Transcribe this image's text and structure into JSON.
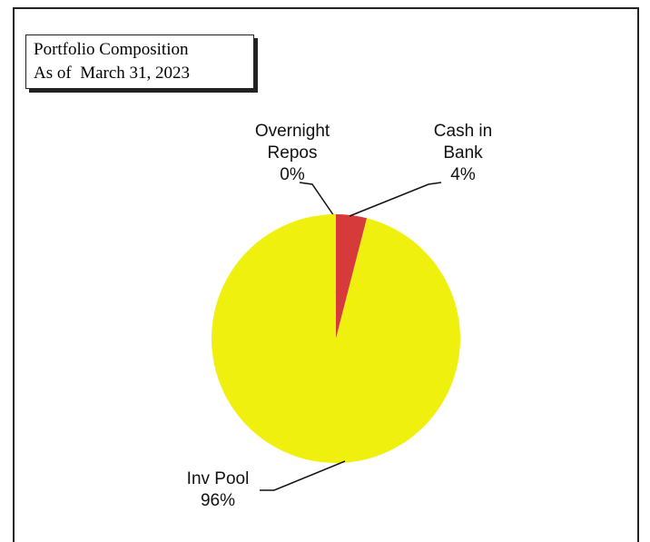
{
  "chart_data": {
    "type": "pie",
    "title": "Portfolio Composition",
    "subtitle": "As of  March 31, 2023",
    "categories": [
      "Overnight Repos",
      "Cash in Bank",
      "Inv Pool"
    ],
    "values": [
      0,
      4,
      96
    ],
    "value_labels": [
      "0%",
      "4%",
      "96%"
    ],
    "colors": [
      null,
      "#d63a3a",
      "#f0f00f"
    ]
  }
}
